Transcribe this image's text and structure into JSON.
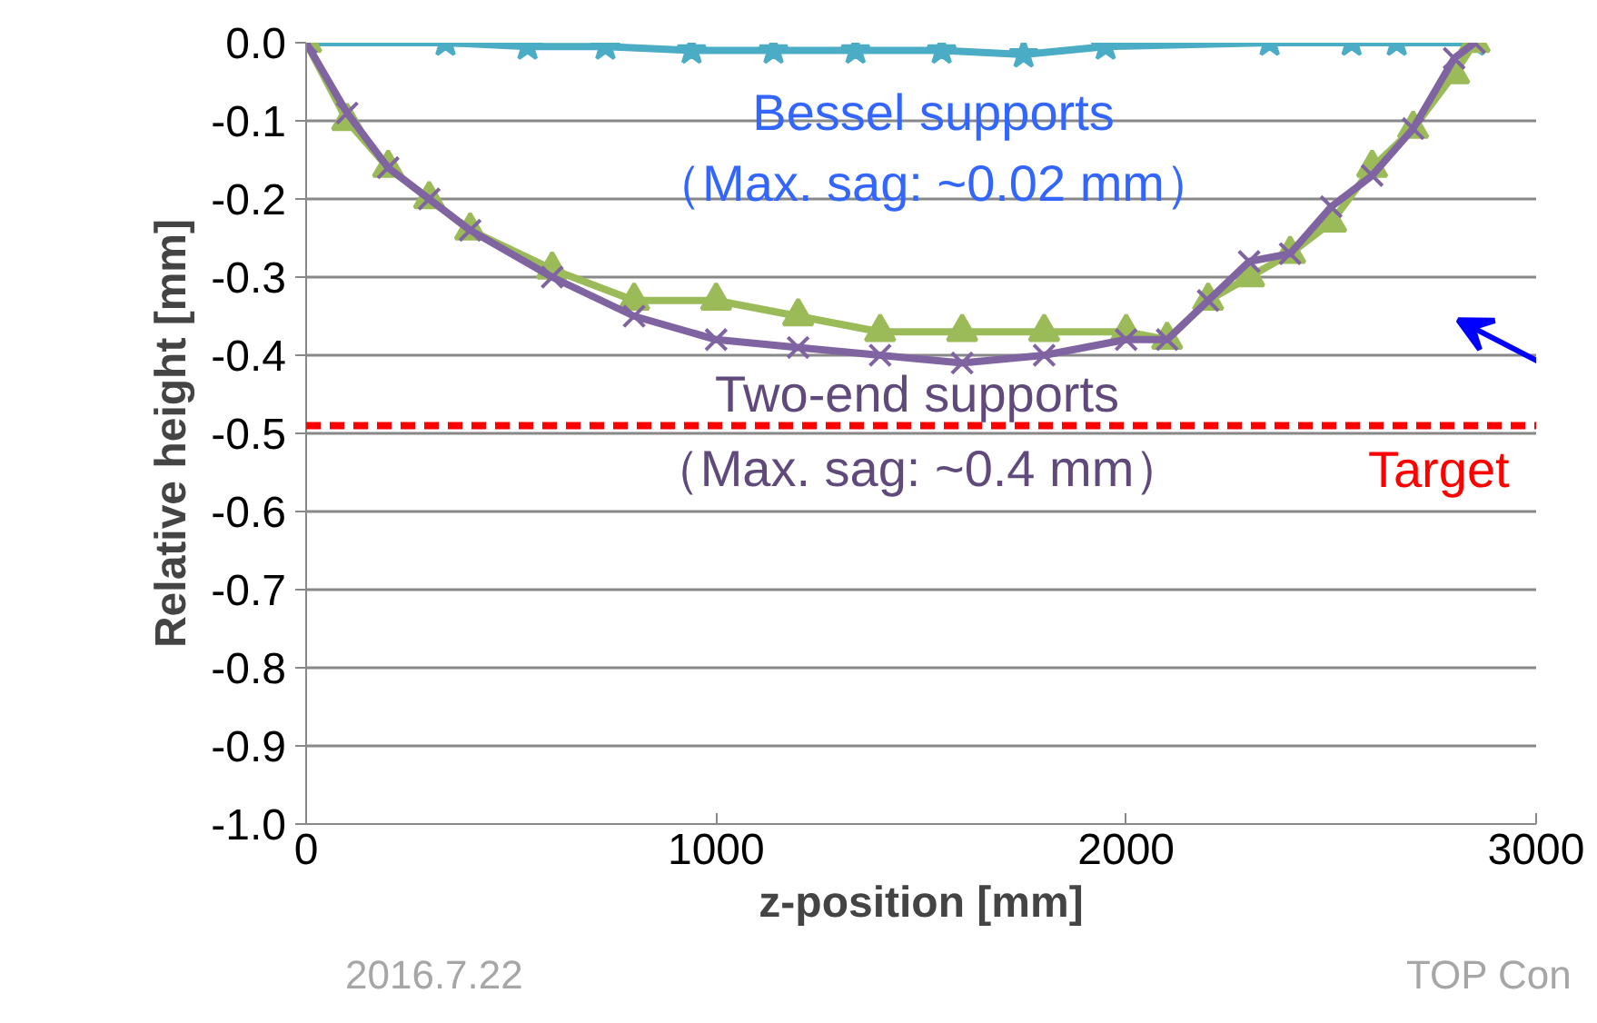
{
  "chart_data": {
    "type": "line",
    "xlabel": "z-position [mm]",
    "ylabel": "Relative height [mm]",
    "xlim": [
      0,
      3000
    ],
    "xticks": [
      0,
      1000,
      2000,
      3000
    ],
    "ylim": [
      -1.0,
      0.0
    ],
    "yticks": [
      {
        "value": 0,
        "label": "0.0"
      },
      {
        "value": -0.1,
        "label": "-0.1"
      },
      {
        "value": -0.2,
        "label": "-0.2"
      },
      {
        "value": -0.3,
        "label": "-0.3"
      },
      {
        "value": -0.4,
        "label": "-0.4"
      },
      {
        "value": -0.5,
        "label": "-0.5"
      },
      {
        "value": -0.6,
        "label": "-0.6"
      },
      {
        "value": -0.7,
        "label": "-0.7"
      },
      {
        "value": -0.8,
        "label": "-0.8"
      },
      {
        "value": -0.9,
        "label": "-0.9"
      },
      {
        "value": -1.0,
        "label": "-1.0"
      }
    ],
    "grid": "y",
    "series": [
      {
        "color": "#4bacc6",
        "marker": "star",
        "x": [
          0,
          340,
          540,
          730,
          940,
          1140,
          1340,
          1550,
          1750,
          1950,
          2350,
          2550,
          2660,
          2850
        ],
        "values": [
          0,
          0,
          -0.005,
          -0.005,
          -0.01,
          -0.01,
          -0.01,
          -0.01,
          -0.015,
          -0.005,
          0,
          0,
          0,
          0
        ]
      },
      {
        "color": "#9bbb59",
        "marker": "triangle",
        "x": [
          0,
          100,
          200,
          300,
          400,
          600,
          800,
          1000,
          1200,
          1400,
          1600,
          1800,
          2000,
          2100,
          2200,
          2300,
          2400,
          2500,
          2600,
          2700,
          2800,
          2850
        ],
        "values": [
          0,
          -0.1,
          -0.16,
          -0.2,
          -0.24,
          -0.29,
          -0.33,
          -0.33,
          -0.35,
          -0.37,
          -0.37,
          -0.37,
          -0.37,
          -0.38,
          -0.33,
          -0.3,
          -0.27,
          -0.23,
          -0.16,
          -0.11,
          -0.04,
          0
        ]
      },
      {
        "color": "#8064a2",
        "marker": "cross",
        "x": [
          0,
          100,
          200,
          300,
          400,
          600,
          800,
          1000,
          1200,
          1400,
          1600,
          1800,
          2000,
          2100,
          2200,
          2300,
          2400,
          2500,
          2600,
          2700,
          2800,
          2850
        ],
        "values": [
          0,
          -0.09,
          -0.16,
          -0.2,
          -0.24,
          -0.3,
          -0.35,
          -0.38,
          -0.39,
          -0.4,
          -0.41,
          -0.4,
          -0.38,
          -0.38,
          -0.33,
          -0.28,
          -0.27,
          -0.21,
          -0.17,
          -0.11,
          -0.02,
          0
        ]
      }
    ],
    "ref_lines": [
      {
        "axis": "y",
        "value": -0.49,
        "label": "Target",
        "color": "#ff0000",
        "line_style": "dashed"
      }
    ],
    "annotations": [
      "Bessel supports",
      "（Max. sag: ~0.02 mm）",
      "Two-end supports",
      "（Max. sag: ~0.4 mm）",
      "2016.7.22",
      "TOP Con"
    ]
  }
}
